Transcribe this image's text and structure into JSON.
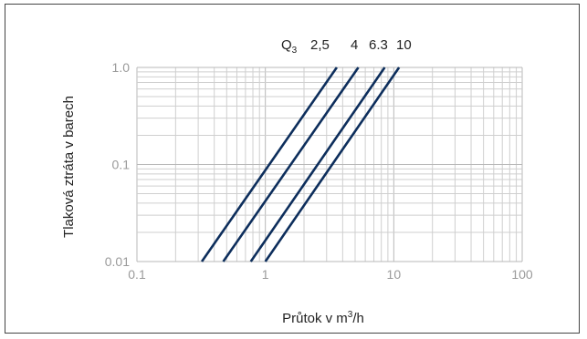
{
  "chart_data": {
    "type": "line",
    "title": "",
    "xlabel_text": "Průtok v m",
    "xlabel_sup": "3",
    "xlabel_tail": "/h",
    "ylabel": "Tlaková ztráta v barech",
    "xscale": "log",
    "yscale": "log",
    "xlim": [
      0.1,
      100
    ],
    "ylim": [
      0.01,
      1.0
    ],
    "grid": true,
    "x_ticks": [
      0.1,
      1,
      10,
      100
    ],
    "x_tick_labels": [
      "0.1",
      "1",
      "10",
      "100"
    ],
    "y_ticks": [
      0.01,
      0.1,
      1.0
    ],
    "y_tick_labels": [
      "0.01",
      "0.1",
      "1.0"
    ],
    "legend_prefix": "Q",
    "legend_prefix_sub": "3",
    "legend_position": "top",
    "line_color": "#0d2e5c",
    "series": [
      {
        "name": "2,5",
        "points": [
          [
            0.32,
            0.01
          ],
          [
            3.6,
            1.0
          ]
        ]
      },
      {
        "name": "4",
        "points": [
          [
            0.47,
            0.01
          ],
          [
            5.3,
            1.0
          ]
        ]
      },
      {
        "name": "6.3",
        "points": [
          [
            0.77,
            0.01
          ],
          [
            8.5,
            1.0
          ]
        ]
      },
      {
        "name": "10",
        "points": [
          [
            1.0,
            0.01
          ],
          [
            11.0,
            1.0
          ]
        ]
      }
    ]
  }
}
